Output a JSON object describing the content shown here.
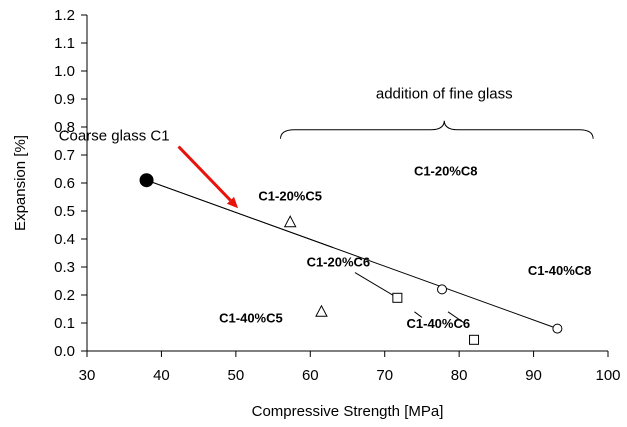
{
  "chart_data": {
    "type": "scatter",
    "xlabel": "Compressive Strength [MPa]",
    "ylabel": "Expansion [%]",
    "xlim": [
      30,
      100
    ],
    "ylim": [
      0,
      1.2
    ],
    "xticks": [
      30,
      40,
      50,
      60,
      70,
      80,
      90,
      100
    ],
    "yticks": [
      "0.0",
      "0.1",
      "0.2",
      "0.3",
      "0.4",
      "0.5",
      "0.6",
      "0.7",
      "0.8",
      "0.9",
      "1.0",
      "1.1",
      "1.2"
    ],
    "grid": false,
    "points": [
      {
        "name": "Coarse glass C1",
        "marker": "filled-circle",
        "x": 38,
        "y": 0.61
      },
      {
        "name": "C1-20%C5",
        "marker": "triangle",
        "x": 57.3,
        "y": 0.46
      },
      {
        "name": "C1-40%C5",
        "marker": "triangle",
        "x": 61.5,
        "y": 0.14
      },
      {
        "name": "C1-20%C6",
        "marker": "square",
        "x": 71.7,
        "y": 0.19
      },
      {
        "name": "C1-40%C6",
        "marker": "square",
        "x": 82,
        "y": 0.04
      },
      {
        "name": "C1-20%C8",
        "marker": "circle",
        "x": 77.7,
        "y": 0.22
      },
      {
        "name": "C1-40%C8",
        "marker": "circle",
        "x": 93.2,
        "y": 0.08
      }
    ],
    "lines": [
      {
        "from": [
          38,
          0.61
        ],
        "to": [
          93.2,
          0.08
        ]
      },
      {
        "from": [
          38,
          0.61
        ],
        "to": [
          63,
          0.37
        ]
      }
    ],
    "leader_lines": [
      {
        "from": [
          66,
          0.28
        ],
        "to": [
          71.7,
          0.19
        ]
      },
      {
        "from": [
          78.5,
          0.14
        ],
        "to": [
          80.7,
          0.1
        ]
      },
      {
        "from": [
          74,
          0.14
        ],
        "to": [
          75,
          0.12
        ]
      }
    ],
    "arrow": {
      "color": "#e8140c",
      "from": [
        42.3,
        0.73
      ],
      "to": [
        50.3,
        0.51
      ]
    },
    "brace": {
      "from_x": 56,
      "to_x": 98,
      "y": 0.79,
      "mid_x": 78
    },
    "annotations": [
      {
        "text": "addition of fine glass",
        "x": 78,
        "y": 0.92,
        "style": "plain",
        "anchor": "middle"
      },
      {
        "text": "Coarse glass C1",
        "x": 26.2,
        "y": 0.77,
        "style": "plain",
        "anchor": "start"
      },
      {
        "text": "C1-20%C5",
        "x": 57.3,
        "y": 0.555,
        "style": "bold",
        "anchor": "middle"
      },
      {
        "text": "C1-20%C8",
        "x": 78.2,
        "y": 0.645,
        "style": "bold",
        "anchor": "middle"
      },
      {
        "text": "C1-40%C8",
        "x": 93.5,
        "y": 0.29,
        "style": "bold",
        "anchor": "middle"
      },
      {
        "text": "C1-20%C6",
        "x": 59.5,
        "y": 0.32,
        "style": "bold",
        "anchor": "start"
      },
      {
        "text": "C1-40%C5",
        "x": 56.3,
        "y": 0.12,
        "style": "bold",
        "anchor": "end"
      },
      {
        "text": "C1-40%C6",
        "x": 77.2,
        "y": 0.1,
        "style": "bold",
        "anchor": "middle"
      }
    ]
  }
}
